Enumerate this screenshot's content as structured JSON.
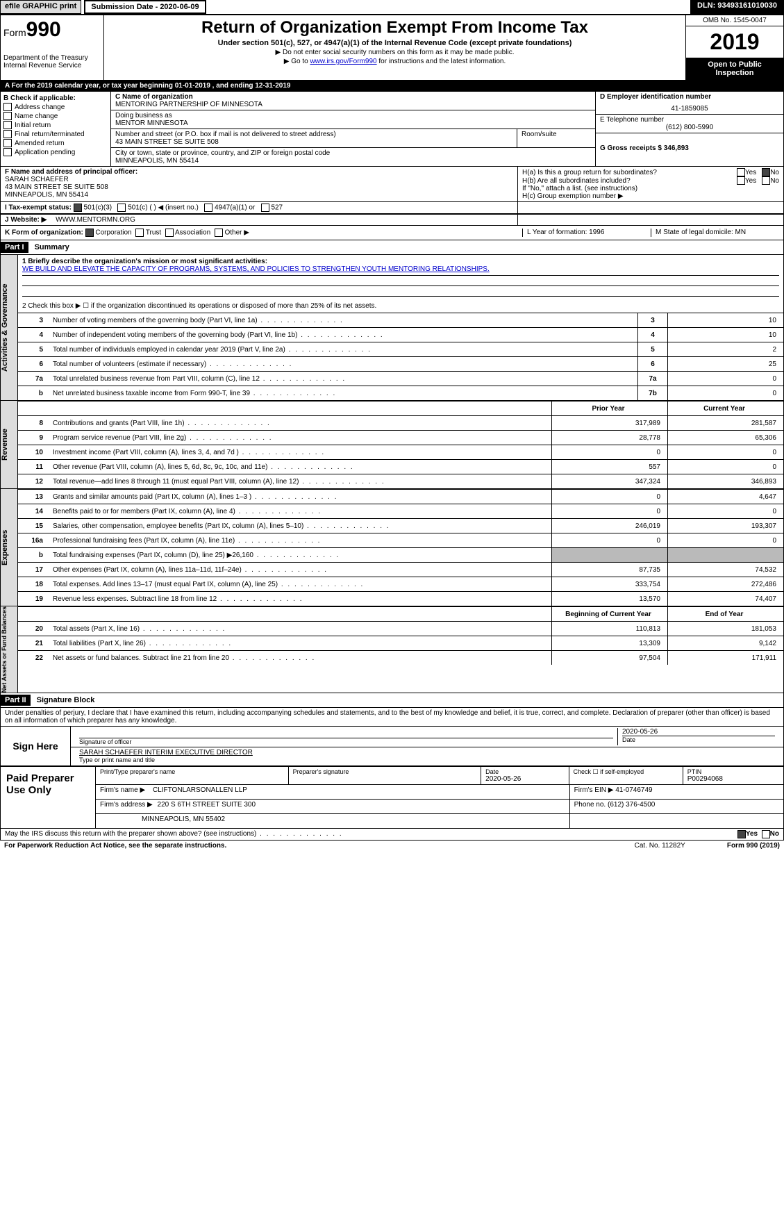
{
  "top": {
    "efile": "efile GRAPHIC print",
    "submission": "Submission Date - 2020-06-09",
    "dln": "DLN: 93493161010030"
  },
  "header": {
    "form_label": "Form",
    "form_num": "990",
    "dept": "Department of the Treasury\nInternal Revenue Service",
    "title": "Return of Organization Exempt From Income Tax",
    "sub": "Under section 501(c), 527, or 4947(a)(1) of the Internal Revenue Code (except private foundations)",
    "note1": "▶ Do not enter social security numbers on this form as it may be made public.",
    "note2_pre": "▶ Go to ",
    "note2_link": "www.irs.gov/Form990",
    "note2_post": " for instructions and the latest information.",
    "omb": "OMB No. 1545-0047",
    "year": "2019",
    "open": "Open to Public\nInspection"
  },
  "row_a": "A  For the 2019 calendar year, or tax year beginning 01-01-2019        , and ending 12-31-2019",
  "section_b": {
    "label": "B Check if applicable:",
    "items": [
      "Address change",
      "Name change",
      "Initial return",
      "Final return/terminated",
      "Amended return",
      "Application pending"
    ]
  },
  "section_c": {
    "c_label": "C Name of organization",
    "org_name": "MENTORING PARTNERSHIP OF MINNESOTA",
    "dba_label": "Doing business as",
    "dba": "MENTOR MINNESOTA",
    "addr_label": "Number and street (or P.O. box if mail is not delivered to street address)",
    "addr": "43 MAIN STREET SE SUITE 508",
    "room_label": "Room/suite",
    "city_label": "City or town, state or province, country, and ZIP or foreign postal code",
    "city": "MINNEAPOLIS, MN  55414"
  },
  "section_d": {
    "d_label": "D Employer identification number",
    "ein": "41-1859085",
    "e_label": "E Telephone number",
    "phone": "(612) 800-5990",
    "g_label": "G Gross receipts $ 346,893"
  },
  "section_f": {
    "f_label": "F Name and address of principal officer:",
    "name": "SARAH SCHAEFER",
    "addr": "43 MAIN STREET SE SUITE 508",
    "city": "MINNEAPOLIS, MN  55414"
  },
  "section_h": {
    "ha": "H(a)   Is this a group return for subordinates?",
    "hb": "H(b)   Are all subordinates included?",
    "hb_note": "If \"No,\" attach a list. (see instructions)",
    "hc": "H(c)   Group exemption number ▶",
    "yes": "Yes",
    "no": "No"
  },
  "row_i": {
    "label": "I    Tax-exempt status:",
    "opts": [
      "501(c)(3)",
      "501(c) (  ) ◀ (insert no.)",
      "4947(a)(1) or",
      "527"
    ]
  },
  "row_j": {
    "label": "J    Website: ▶",
    "url": "WWW.MENTORMN.ORG"
  },
  "row_k": {
    "label": "K Form of organization:",
    "opts": [
      "Corporation",
      "Trust",
      "Association",
      "Other ▶"
    ],
    "l": "L Year of formation: 1996",
    "m": "M State of legal domicile: MN"
  },
  "part1": {
    "header": "Part I",
    "title": "Summary",
    "side1": "Activities & Governance",
    "side2": "Revenue",
    "side3": "Expenses",
    "side4": "Net Assets or Fund Balances",
    "line1_label": "1  Briefly describe the organization's mission or most significant activities:",
    "line1_text": "WE BUILD AND ELEVATE THE CAPACITY OF PROGRAMS, SYSTEMS, AND POLICIES TO STRENGTHEN YOUTH MENTORING RELATIONSHIPS.",
    "line2": "2    Check this box ▶ ☐ if the organization discontinued its operations or disposed of more than 25% of its net assets.",
    "rows_gov": [
      {
        "n": "3",
        "label": "Number of voting members of the governing body (Part VI, line 1a)",
        "c": "3",
        "v": "10"
      },
      {
        "n": "4",
        "label": "Number of independent voting members of the governing body (Part VI, line 1b)",
        "c": "4",
        "v": "10"
      },
      {
        "n": "5",
        "label": "Total number of individuals employed in calendar year 2019 (Part V, line 2a)",
        "c": "5",
        "v": "2"
      },
      {
        "n": "6",
        "label": "Total number of volunteers (estimate if necessary)",
        "c": "6",
        "v": "25"
      },
      {
        "n": "7a",
        "label": "Total unrelated business revenue from Part VIII, column (C), line 12",
        "c": "7a",
        "v": "0"
      },
      {
        "n": "b",
        "label": "Net unrelated business taxable income from Form 990-T, line 39",
        "c": "7b",
        "v": "0"
      }
    ],
    "hdr_prior": "Prior Year",
    "hdr_current": "Current Year",
    "rows_rev": [
      {
        "n": "8",
        "label": "Contributions and grants (Part VIII, line 1h)",
        "p": "317,989",
        "c": "281,587"
      },
      {
        "n": "9",
        "label": "Program service revenue (Part VIII, line 2g)",
        "p": "28,778",
        "c": "65,306"
      },
      {
        "n": "10",
        "label": "Investment income (Part VIII, column (A), lines 3, 4, and 7d )",
        "p": "0",
        "c": "0"
      },
      {
        "n": "11",
        "label": "Other revenue (Part VIII, column (A), lines 5, 6d, 8c, 9c, 10c, and 11e)",
        "p": "557",
        "c": "0"
      },
      {
        "n": "12",
        "label": "Total revenue—add lines 8 through 11 (must equal Part VIII, column (A), line 12)",
        "p": "347,324",
        "c": "346,893"
      }
    ],
    "rows_exp": [
      {
        "n": "13",
        "label": "Grants and similar amounts paid (Part IX, column (A), lines 1–3 )",
        "p": "0",
        "c": "4,647"
      },
      {
        "n": "14",
        "label": "Benefits paid to or for members (Part IX, column (A), line 4)",
        "p": "0",
        "c": "0"
      },
      {
        "n": "15",
        "label": "Salaries, other compensation, employee benefits (Part IX, column (A), lines 5–10)",
        "p": "246,019",
        "c": "193,307"
      },
      {
        "n": "16a",
        "label": "Professional fundraising fees (Part IX, column (A), line 11e)",
        "p": "0",
        "c": "0"
      },
      {
        "n": "b",
        "label": "Total fundraising expenses (Part IX, column (D), line 25) ▶26,160",
        "p": "grey",
        "c": "grey"
      },
      {
        "n": "17",
        "label": "Other expenses (Part IX, column (A), lines 11a–11d, 11f–24e)",
        "p": "87,735",
        "c": "74,532"
      },
      {
        "n": "18",
        "label": "Total expenses. Add lines 13–17 (must equal Part IX, column (A), line 25)",
        "p": "333,754",
        "c": "272,486"
      },
      {
        "n": "19",
        "label": "Revenue less expenses. Subtract line 18 from line 12",
        "p": "13,570",
        "c": "74,407"
      }
    ],
    "hdr_boy": "Beginning of Current Year",
    "hdr_eoy": "End of Year",
    "rows_net": [
      {
        "n": "20",
        "label": "Total assets (Part X, line 16)",
        "p": "110,813",
        "c": "181,053"
      },
      {
        "n": "21",
        "label": "Total liabilities (Part X, line 26)",
        "p": "13,309",
        "c": "9,142"
      },
      {
        "n": "22",
        "label": "Net assets or fund balances. Subtract line 21 from line 20",
        "p": "97,504",
        "c": "171,911"
      }
    ]
  },
  "part2": {
    "header": "Part II",
    "title": "Signature Block",
    "declare": "Under penalties of perjury, I declare that I have examined this return, including accompanying schedules and statements, and to the best of my knowledge and belief, it is true, correct, and complete. Declaration of preparer (other than officer) is based on all information of which preparer has any knowledge.",
    "sign_here": "Sign Here",
    "sig_label": "Signature of officer",
    "date_label": "Date",
    "sig_date": "2020-05-26",
    "name_title": "SARAH SCHAEFER  INTERIM EXECUTIVE DIRECTOR",
    "name_label": "Type or print name and title",
    "paid": "Paid Preparer Use Only",
    "prep_name_label": "Print/Type preparer's name",
    "prep_sig_label": "Preparer's signature",
    "prep_date_label": "Date",
    "prep_date": "2020-05-26",
    "check_label": "Check ☐ if self-employed",
    "ptin_label": "PTIN",
    "ptin": "P00294068",
    "firm_name_label": "Firm's name    ▶",
    "firm_name": "CLIFTONLARSONALLEN LLP",
    "firm_ein_label": "Firm's EIN ▶",
    "firm_ein": "41-0746749",
    "firm_addr_label": "Firm's address ▶",
    "firm_addr": "220 S 6TH STREET SUITE 300",
    "firm_city": "MINNEAPOLIS, MN  55402",
    "phone_label": "Phone no.",
    "phone": "(612) 376-4500",
    "discuss": "May the IRS discuss this return with the preparer shown above? (see instructions)",
    "yes": "Yes",
    "no": "No"
  },
  "footer": {
    "pra": "For Paperwork Reduction Act Notice, see the separate instructions.",
    "cat": "Cat. No. 11282Y",
    "form": "Form 990 (2019)"
  }
}
